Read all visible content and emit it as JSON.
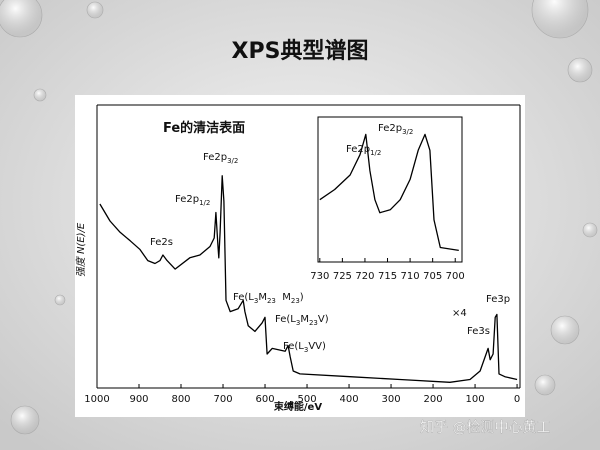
{
  "title": "XPS典型谱图",
  "watermark": "知乎 @检测中心黄工",
  "chart_data": [
    {
      "type": "line",
      "color": "#000000",
      "x_label": "束缚能/eV",
      "y_label": "强度 N(E)/E",
      "xlim": [
        1000,
        -7
      ],
      "ylim": [
        0,
        100
      ],
      "xticks": [
        1000,
        900,
        800,
        700,
        600,
        500,
        400,
        300,
        200,
        100,
        0
      ],
      "x": [
        993,
        969,
        945,
        921,
        898,
        879,
        862,
        850,
        843,
        833,
        814,
        779,
        755,
        731,
        721,
        717,
        712,
        710,
        707,
        702,
        698,
        693,
        683,
        664,
        652,
        648,
        640,
        624,
        607,
        600,
        595,
        583,
        552,
        545,
        540,
        533,
        517,
        398,
        279,
        160,
        112,
        88,
        76,
        69,
        64,
        57,
        52,
        48,
        43,
        29,
        0
      ],
      "values": [
        65,
        59,
        55,
        52,
        49,
        45,
        44,
        45,
        47,
        45,
        42,
        46,
        47,
        50,
        53,
        62,
        50,
        46,
        55,
        75,
        66,
        31,
        27,
        28,
        31,
        27,
        22,
        20,
        23,
        25,
        12,
        14,
        13,
        15,
        11,
        6,
        5,
        4,
        3,
        2,
        3,
        6,
        11,
        14,
        10,
        12,
        25,
        26,
        5,
        4,
        3
      ],
      "annotations": [
        {
          "parts": [
            "Fe的清洁表面"
          ]
        },
        {
          "parts": [
            "Fe2s"
          ]
        },
        {
          "parts": [
            "Fe2p",
            "1/2"
          ]
        },
        {
          "parts": [
            "Fe2p",
            "3/2"
          ]
        },
        {
          "parts": [
            "Fe(L",
            "3",
            "M",
            "23",
            "  M",
            "23",
            ")"
          ]
        },
        {
          "parts": [
            "Fe(L",
            "3",
            "M",
            "23",
            "V)"
          ]
        },
        {
          "parts": [
            "Fe(L",
            "3",
            "VV)"
          ]
        },
        {
          "parts": [
            "×4"
          ]
        },
        {
          "parts": [
            "Fe3s"
          ]
        },
        {
          "parts": [
            "Fe3p"
          ]
        }
      ]
    },
    {
      "type": "line",
      "color": "#000000",
      "xlim": [
        730.4,
        698.5
      ],
      "ylim": [
        0,
        100
      ],
      "xticks": [
        730,
        725,
        720,
        715,
        710,
        705,
        700
      ],
      "x": [
        730,
        726.7,
        723.3,
        721.1,
        719.8,
        718.9,
        717.8,
        716.7,
        714.4,
        712.2,
        710,
        708.2,
        706.7,
        705.6,
        704.7,
        703.3,
        699.2
      ],
      "values": [
        43,
        50,
        60,
        74,
        88,
        63,
        43,
        34,
        36,
        43,
        57,
        77,
        88,
        77,
        29,
        10,
        8
      ],
      "annotations": [
        {
          "parts": [
            "Fe2p",
            "1/2"
          ]
        },
        {
          "parts": [
            "Fe2p",
            "3/2"
          ]
        }
      ]
    }
  ]
}
